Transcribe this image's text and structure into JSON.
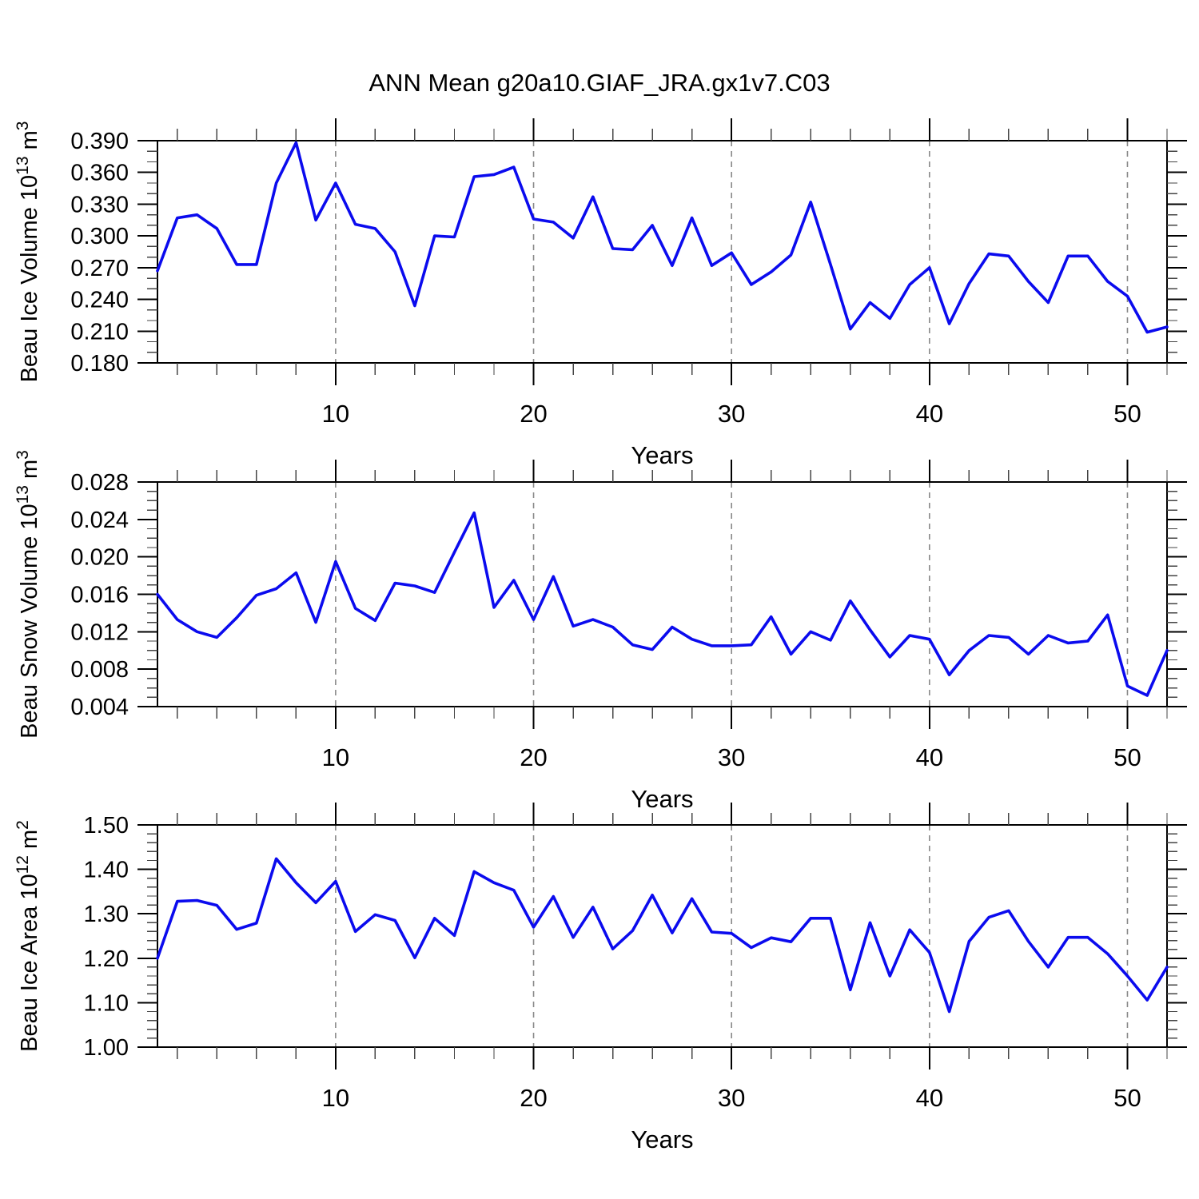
{
  "title": "ANN Mean g20a10.GIAF_JRA.gx1v7.C03",
  "colors": {
    "line": "#0b0bee",
    "grid": "#888888",
    "axis": "#000000",
    "minor_tick": "#444444",
    "background": "#ffffff"
  },
  "years": [
    1,
    2,
    3,
    4,
    5,
    6,
    7,
    8,
    9,
    10,
    11,
    12,
    13,
    14,
    15,
    16,
    17,
    18,
    19,
    20,
    21,
    22,
    23,
    24,
    25,
    26,
    27,
    28,
    29,
    30,
    31,
    32,
    33,
    34,
    35,
    36,
    37,
    38,
    39,
    40,
    41,
    42,
    43,
    44,
    45,
    46,
    47,
    48,
    49,
    50,
    51,
    52
  ],
  "chart_data": [
    {
      "type": "line",
      "ylabel_parts": [
        [
          "Beau Ice Volume 10",
          false
        ],
        [
          "13",
          true
        ],
        [
          " m",
          false
        ],
        [
          "3",
          true
        ]
      ],
      "xlabel": "Years",
      "ylim": [
        0.18,
        0.39
      ],
      "yticks": [
        {
          "v": 0.39,
          "label": "0.390"
        },
        {
          "v": 0.36,
          "label": "0.360"
        },
        {
          "v": 0.33,
          "label": "0.330"
        },
        {
          "v": 0.3,
          "label": "0.300"
        },
        {
          "v": 0.27,
          "label": "0.270"
        },
        {
          "v": 0.24,
          "label": "0.240"
        },
        {
          "v": 0.21,
          "label": "0.210"
        },
        {
          "v": 0.18,
          "label": "0.180"
        }
      ],
      "ytick_step": 0.03,
      "yminor_step": 0.01,
      "xticks_major": [
        10,
        20,
        30,
        40,
        50
      ],
      "xminor_step": 2,
      "grid": "vertical-dashed",
      "values": [
        0.267,
        0.317,
        0.32,
        0.307,
        0.273,
        0.273,
        0.35,
        0.388,
        0.315,
        0.35,
        0.311,
        0.307,
        0.285,
        0.234,
        0.3,
        0.299,
        0.356,
        0.358,
        0.365,
        0.316,
        0.313,
        0.298,
        0.337,
        0.288,
        0.287,
        0.31,
        0.272,
        0.317,
        0.272,
        0.284,
        0.254,
        0.266,
        0.282,
        0.332,
        0.273,
        0.212,
        0.237,
        0.222,
        0.254,
        0.27,
        0.217,
        0.255,
        0.283,
        0.281,
        0.257,
        0.237,
        0.281,
        0.281,
        0.257,
        0.243,
        0.209,
        0.214
      ]
    },
    {
      "type": "line",
      "ylabel_parts": [
        [
          "Beau Snow Volume 10",
          false
        ],
        [
          "13",
          true
        ],
        [
          " m",
          false
        ],
        [
          "3",
          true
        ]
      ],
      "xlabel": "Years",
      "ylim": [
        0.004,
        0.028
      ],
      "yticks": [
        {
          "v": 0.028,
          "label": "0.028"
        },
        {
          "v": 0.024,
          "label": "0.024"
        },
        {
          "v": 0.02,
          "label": "0.020"
        },
        {
          "v": 0.016,
          "label": "0.016"
        },
        {
          "v": 0.012,
          "label": "0.012"
        },
        {
          "v": 0.008,
          "label": "0.008"
        },
        {
          "v": 0.004,
          "label": "0.004"
        }
      ],
      "ytick_step": 0.004,
      "yminor_step": 0.001,
      "xticks_major": [
        10,
        20,
        30,
        40,
        50
      ],
      "xminor_step": 2,
      "grid": "vertical-dashed",
      "values": [
        0.016,
        0.0133,
        0.012,
        0.0114,
        0.0135,
        0.0159,
        0.0166,
        0.0183,
        0.013,
        0.0195,
        0.0145,
        0.0132,
        0.0172,
        0.0169,
        0.0162,
        0.0205,
        0.0247,
        0.0146,
        0.0175,
        0.0133,
        0.0179,
        0.0126,
        0.0133,
        0.0125,
        0.0106,
        0.0101,
        0.0125,
        0.0112,
        0.0105,
        0.0105,
        0.0106,
        0.0136,
        0.0096,
        0.012,
        0.0111,
        0.0153,
        0.0122,
        0.0093,
        0.0116,
        0.0112,
        0.0074,
        0.01,
        0.0116,
        0.0114,
        0.0096,
        0.0116,
        0.0108,
        0.011,
        0.0138,
        0.0062,
        0.0052,
        0.01
      ]
    },
    {
      "type": "line",
      "ylabel_parts": [
        [
          "Beau Ice Area 10",
          false
        ],
        [
          "12",
          true
        ],
        [
          " m",
          false
        ],
        [
          "2",
          true
        ]
      ],
      "xlabel": "Years",
      "ylim": [
        1.0,
        1.5
      ],
      "yticks": [
        {
          "v": 1.5,
          "label": "1.50"
        },
        {
          "v": 1.4,
          "label": "1.40"
        },
        {
          "v": 1.3,
          "label": "1.30"
        },
        {
          "v": 1.2,
          "label": "1.20"
        },
        {
          "v": 1.1,
          "label": "1.10"
        },
        {
          "v": 1.0,
          "label": "1.00"
        }
      ],
      "ytick_step": 0.1,
      "yminor_step": 0.02,
      "xticks_major": [
        10,
        20,
        30,
        40,
        50
      ],
      "xminor_step": 2,
      "grid": "vertical-dashed",
      "values": [
        1.2,
        1.328,
        1.33,
        1.319,
        1.265,
        1.279,
        1.424,
        1.37,
        1.325,
        1.373,
        1.26,
        1.298,
        1.285,
        1.201,
        1.29,
        1.251,
        1.395,
        1.37,
        1.353,
        1.27,
        1.339,
        1.247,
        1.315,
        1.221,
        1.262,
        1.342,
        1.257,
        1.334,
        1.259,
        1.256,
        1.224,
        1.246,
        1.237,
        1.29,
        1.29,
        1.129,
        1.28,
        1.16,
        1.264,
        1.213,
        1.08,
        1.238,
        1.292,
        1.307,
        1.238,
        1.18,
        1.247,
        1.247,
        1.21,
        1.16,
        1.106,
        1.18
      ]
    }
  ]
}
